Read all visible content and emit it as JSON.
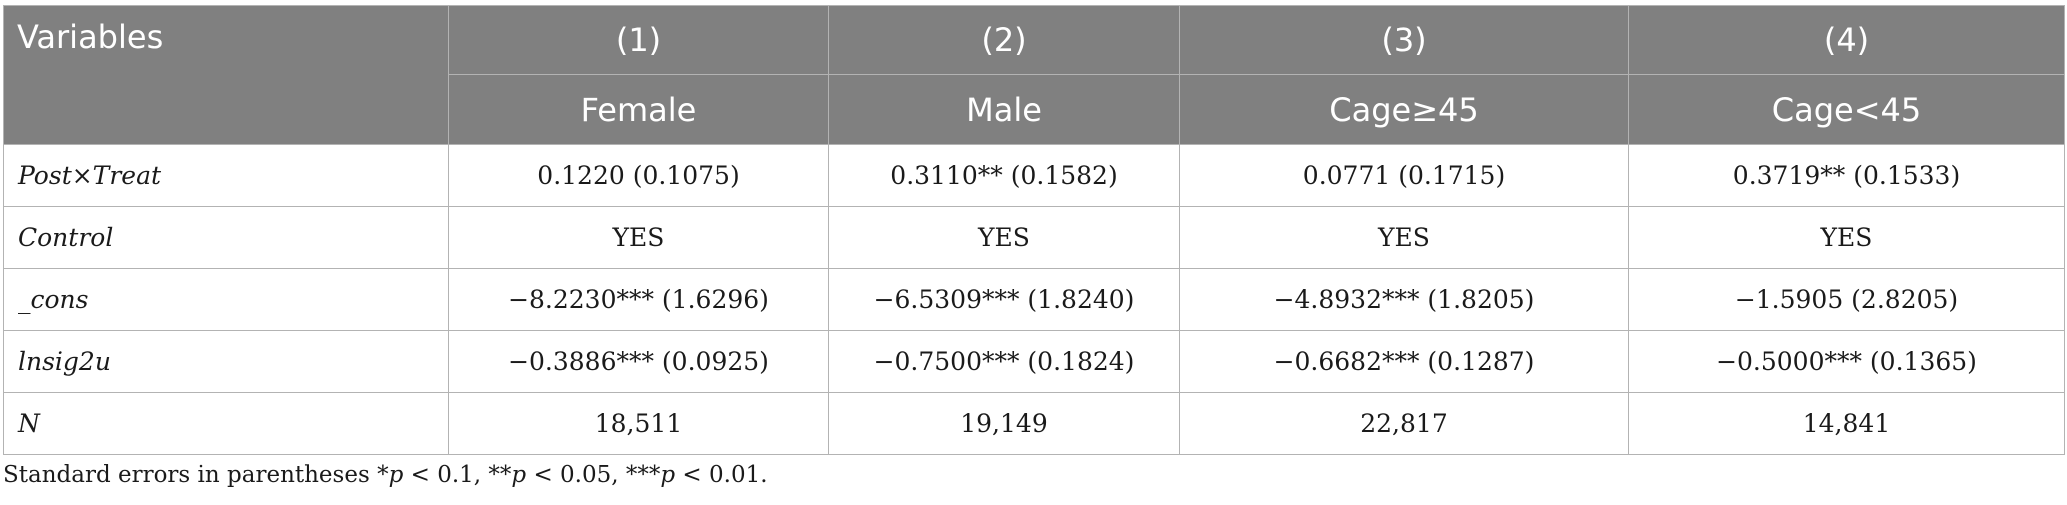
{
  "table": {
    "header_row1": [
      "Variables",
      "(1)",
      "(2)",
      "(3)",
      "(4)"
    ],
    "header_row2": [
      "Female",
      "Male",
      "Cage≥45",
      "Cage<45"
    ],
    "rows": [
      {
        "label": "Post×Treat",
        "cells": [
          "0.1220 (0.1075)",
          "0.3110** (0.1582)",
          "0.0771 (0.1715)",
          "0.3719** (0.1533)"
        ]
      },
      {
        "label": "Control",
        "cells": [
          "YES",
          "YES",
          "YES",
          "YES"
        ]
      },
      {
        "label": "_cons",
        "cells": [
          "−8.2230*** (1.6296)",
          "−6.5309*** (1.8240)",
          "−4.8932*** (1.8205)",
          "−1.5905 (2.8205)"
        ]
      },
      {
        "label": "lnsig2u",
        "cells": [
          "−0.3886*** (0.0925)",
          "−0.7500*** (0.1824)",
          "−0.6682*** (0.1287)",
          "−0.5000*** (0.1365)"
        ]
      },
      {
        "label": "N",
        "cells": [
          "18,511",
          "19,149",
          "22,817",
          "14,841"
        ]
      }
    ],
    "header_bg": "#808080",
    "header_text_color": "#ffffff"
  },
  "footnote": {
    "lead": "Standard errors in parentheses *",
    "p1": "p",
    "t1": " < 0.1, **",
    "p2": "p",
    "t2": " < 0.05, ***",
    "p3": "p",
    "t3": " < 0.01."
  }
}
